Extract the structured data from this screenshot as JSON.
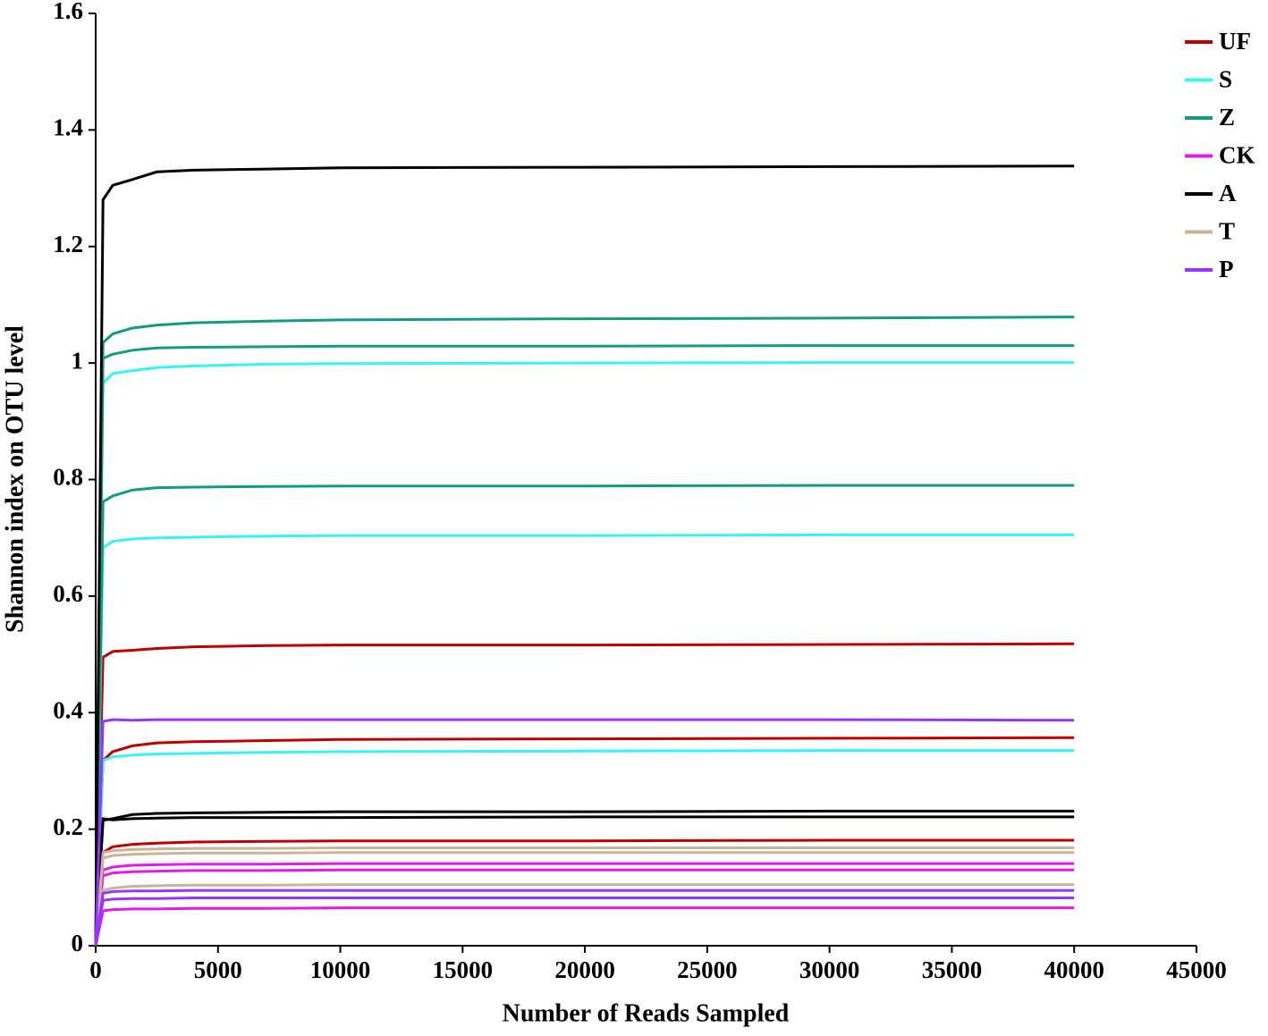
{
  "chart_data": {
    "type": "line",
    "xlabel": "Number of Reads Sampled",
    "ylabel": "Shannon index on OTU level",
    "x": [
      0,
      300,
      700,
      1500,
      2500,
      4000,
      7000,
      10000,
      20000,
      30000,
      40000
    ],
    "xlim": [
      0,
      45000
    ],
    "xticks": [
      0,
      5000,
      10000,
      15000,
      20000,
      25000,
      30000,
      35000,
      40000,
      45000
    ],
    "ylim": [
      0,
      1.6
    ],
    "yticks": [
      0,
      0.2,
      0.4,
      0.6,
      0.8,
      1,
      1.2,
      1.4,
      1.6
    ],
    "series": [
      {
        "name": "UF",
        "color": "#c00000",
        "lines": [
          [
            0,
            0.495,
            0.505,
            0.507,
            0.51,
            0.513,
            0.515,
            0.516,
            0.516,
            0.517,
            0.518
          ],
          [
            0,
            0.318,
            0.333,
            0.343,
            0.348,
            0.35,
            0.352,
            0.354,
            0.355,
            0.356,
            0.357
          ],
          [
            0,
            0.16,
            0.17,
            0.174,
            0.176,
            0.178,
            0.179,
            0.18,
            0.18,
            0.181,
            0.181
          ]
        ]
      },
      {
        "name": "S",
        "color": "#33f5f5",
        "lines": [
          [
            0,
            0.965,
            0.982,
            0.987,
            0.992,
            0.995,
            0.998,
            0.999,
            1.0,
            1.001,
            1.001
          ],
          [
            0,
            0.683,
            0.694,
            0.698,
            0.7,
            0.701,
            0.703,
            0.704,
            0.704,
            0.705,
            0.705
          ],
          [
            0,
            0.318,
            0.324,
            0.327,
            0.329,
            0.33,
            0.332,
            0.333,
            0.334,
            0.335,
            0.335
          ]
        ]
      },
      {
        "name": "Z",
        "color": "#119b83",
        "lines": [
          [
            0,
            1.035,
            1.05,
            1.06,
            1.065,
            1.069,
            1.072,
            1.074,
            1.076,
            1.077,
            1.079
          ],
          [
            0,
            1.008,
            1.015,
            1.022,
            1.026,
            1.027,
            1.028,
            1.029,
            1.029,
            1.03,
            1.03
          ],
          [
            0,
            0.762,
            0.772,
            0.782,
            0.786,
            0.787,
            0.788,
            0.789,
            0.789,
            0.79,
            0.79
          ]
        ]
      },
      {
        "name": "CK",
        "color": "#e619e6",
        "lines": [
          [
            0,
            0.13,
            0.135,
            0.138,
            0.139,
            0.14,
            0.14,
            0.141,
            0.141,
            0.141,
            0.141
          ],
          [
            0,
            0.12,
            0.125,
            0.127,
            0.128,
            0.129,
            0.129,
            0.13,
            0.13,
            0.13,
            0.13
          ],
          [
            0,
            0.06,
            0.062,
            0.063,
            0.063,
            0.064,
            0.064,
            0.065,
            0.065,
            0.065,
            0.065
          ]
        ]
      },
      {
        "name": "A",
        "color": "#000000",
        "lines": [
          [
            0,
            1.28,
            1.305,
            1.315,
            1.328,
            1.331,
            1.333,
            1.335,
            1.336,
            1.337,
            1.338
          ],
          [
            0,
            0.215,
            0.218,
            0.225,
            0.227,
            0.228,
            0.229,
            0.23,
            0.23,
            0.231,
            0.231
          ],
          [
            0,
            0.218,
            0.216,
            0.218,
            0.219,
            0.22,
            0.22,
            0.22,
            0.221,
            0.221,
            0.221
          ]
        ]
      },
      {
        "name": "T",
        "color": "#c8b496",
        "lines": [
          [
            0,
            0.16,
            0.163,
            0.165,
            0.166,
            0.167,
            0.167,
            0.168,
            0.168,
            0.168,
            0.168
          ],
          [
            0,
            0.15,
            0.155,
            0.157,
            0.158,
            0.159,
            0.159,
            0.16,
            0.16,
            0.16,
            0.16
          ],
          [
            0,
            0.095,
            0.099,
            0.102,
            0.103,
            0.104,
            0.104,
            0.105,
            0.105,
            0.105,
            0.105
          ]
        ]
      },
      {
        "name": "P",
        "color": "#9933ff",
        "lines": [
          [
            0,
            0.385,
            0.388,
            0.387,
            0.388,
            0.388,
            0.388,
            0.388,
            0.388,
            0.388,
            0.387
          ],
          [
            0,
            0.09,
            0.093,
            0.094,
            0.094,
            0.095,
            0.095,
            0.095,
            0.095,
            0.095,
            0.095
          ],
          [
            0,
            0.078,
            0.08,
            0.081,
            0.081,
            0.082,
            0.082,
            0.082,
            0.082,
            0.082,
            0.082
          ]
        ]
      }
    ],
    "legend": "upper right"
  }
}
